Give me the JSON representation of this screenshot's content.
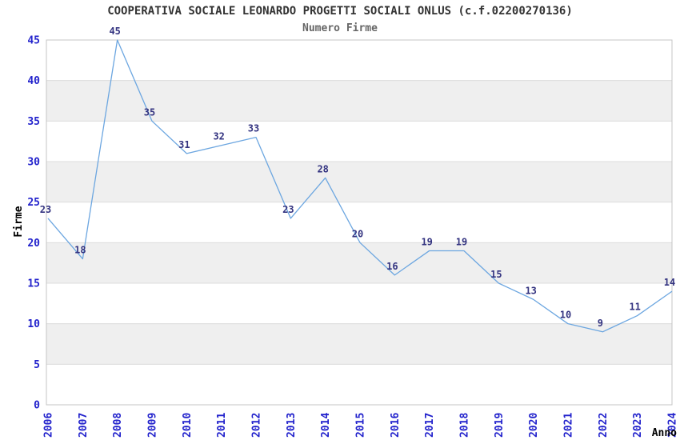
{
  "chart_data": {
    "type": "line",
    "title": "COOPERATIVA SOCIALE LEONARDO PROGETTI SOCIALI ONLUS (c.f.02200270136)",
    "subtitle": "Numero Firme",
    "xlabel": "Anno",
    "ylabel": "Firme",
    "categories": [
      "2006",
      "2007",
      "2008",
      "2009",
      "2010",
      "2011",
      "2012",
      "2013",
      "2014",
      "2015",
      "2016",
      "2017",
      "2018",
      "2019",
      "2020",
      "2021",
      "2022",
      "2023",
      "2024"
    ],
    "values": [
      23,
      18,
      45,
      35,
      31,
      32,
      33,
      23,
      28,
      20,
      16,
      19,
      19,
      15,
      13,
      10,
      9,
      11,
      14
    ],
    "ylim": [
      0,
      45
    ],
    "ytick_step": 5,
    "grid": "horizontal-only",
    "legend": "none",
    "point_labels_shown": true,
    "colors": {
      "line": "#6CA6E0",
      "tick_label": "#2222CC",
      "point_label": "#333380",
      "band_fill": "#EFEFEF",
      "gridline": "#DCDCDC",
      "plot_border": "#C4C4C4",
      "title": "#333333",
      "subtitle": "#666666",
      "axis_title": "#333333",
      "background": "#FFFFFF"
    }
  }
}
